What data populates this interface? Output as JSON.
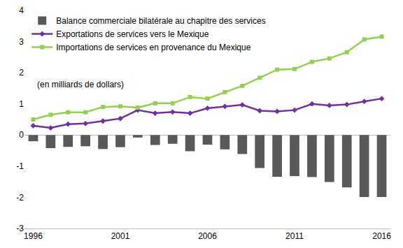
{
  "chart_data": {
    "type": "bar",
    "annotation": "(en milliards de dollars)",
    "x": [
      1996,
      1997,
      1998,
      1999,
      2000,
      2001,
      2002,
      2003,
      2004,
      2005,
      2006,
      2007,
      2008,
      2009,
      2010,
      2011,
      2012,
      2013,
      2014,
      2015,
      2016
    ],
    "series": [
      {
        "name": "Balance commerciale bilatérale au chapitre des services",
        "type": "bar",
        "color": "#595959",
        "values": [
          -0.2,
          -0.42,
          -0.38,
          -0.36,
          -0.45,
          -0.39,
          -0.08,
          -0.32,
          -0.28,
          -0.52,
          -0.31,
          -0.46,
          -0.61,
          -1.06,
          -1.34,
          -1.32,
          -1.35,
          -1.51,
          -1.68,
          -1.99,
          -1.99
        ]
      },
      {
        "name": "Exportations de services vers le Mexique",
        "type": "line",
        "color": "#7030a0",
        "marker": "diamond",
        "line_style": "solid",
        "values": [
          0.3,
          0.23,
          0.35,
          0.37,
          0.45,
          0.53,
          0.8,
          0.7,
          0.74,
          0.7,
          0.86,
          0.92,
          0.97,
          0.78,
          0.76,
          0.8,
          1.0,
          0.95,
          0.98,
          1.08,
          1.17
        ]
      },
      {
        "name": "Importations de services en provenance du Mexique",
        "type": "line",
        "color": "#92d050",
        "marker": "square",
        "line_style": "solid",
        "values": [
          0.5,
          0.65,
          0.73,
          0.73,
          0.9,
          0.92,
          0.88,
          1.02,
          1.02,
          1.22,
          1.17,
          1.38,
          1.58,
          1.84,
          2.1,
          2.12,
          2.35,
          2.46,
          2.66,
          3.07,
          3.16
        ]
      }
    ],
    "xlim": [
      1995.5,
      2016.5
    ],
    "xticks": [
      1996,
      2001,
      2006,
      2011,
      2016
    ],
    "ylim": [
      -3,
      4
    ],
    "yticks": [
      -3,
      -2,
      -1,
      0,
      1,
      2,
      3,
      4
    ],
    "grid": false,
    "legend": "upper left"
  }
}
